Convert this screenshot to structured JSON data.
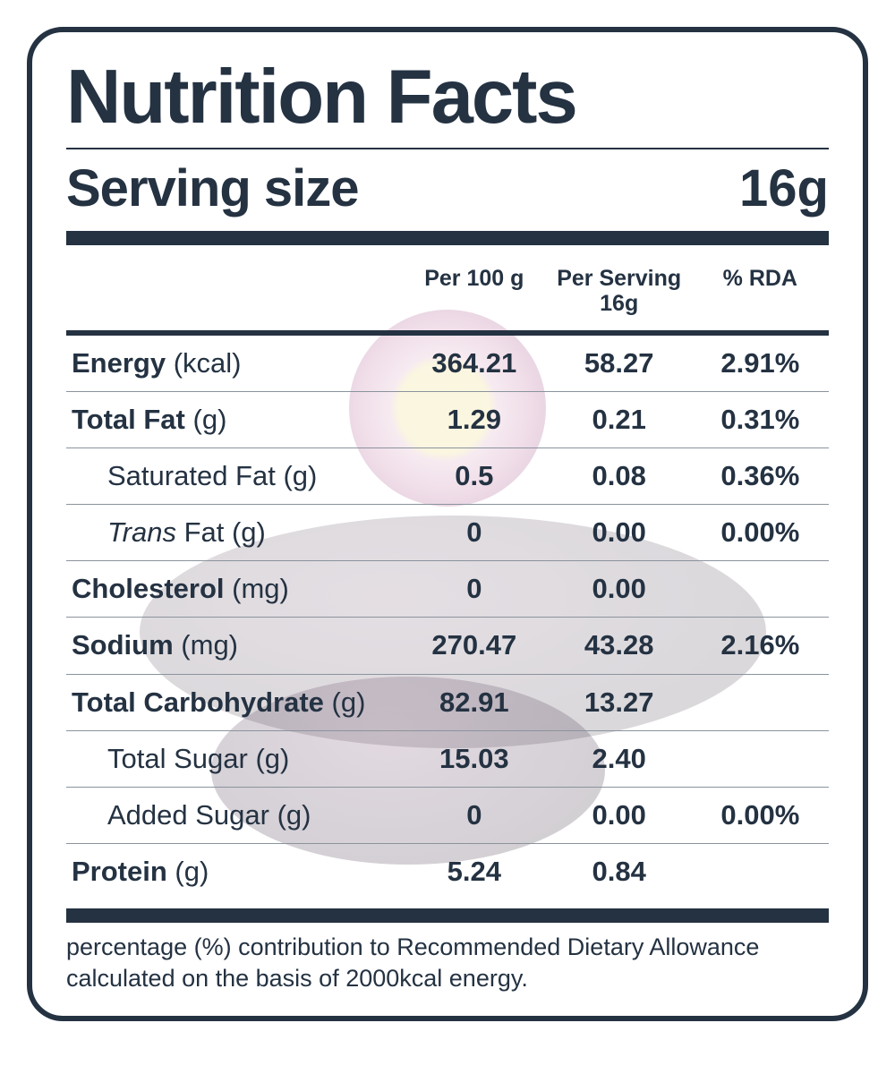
{
  "colors": {
    "ink": "#243242",
    "background": "#ffffff",
    "row_border": "#8a939d"
  },
  "typography": {
    "title_fontsize": 85,
    "serving_fontsize": 58,
    "header_fontsize": 25,
    "cell_fontsize": 31,
    "footnote_fontsize": 27,
    "title_weight": 900,
    "bold_weight": 800
  },
  "layout": {
    "panel_border_width": 6,
    "panel_border_radius": 40,
    "thick_bar_height": 16,
    "col_widths_pct": [
      44,
      19,
      19,
      18
    ]
  },
  "title": "Nutrition Facts",
  "serving": {
    "label": "Serving size",
    "value": "16g"
  },
  "headers": {
    "c0": "",
    "c1": "Per 100 g",
    "c2": "Per Serving 16g",
    "c3": "% RDA"
  },
  "rows": [
    {
      "name_bold": "Energy",
      "unit": "(kcal)",
      "indent": false,
      "italic": false,
      "v1": "364.21",
      "v2": "58.27",
      "v3": "2.91%"
    },
    {
      "name_bold": "Total Fat",
      "unit": "(g)",
      "indent": false,
      "italic": false,
      "v1": "1.29",
      "v2": "0.21",
      "v3": "0.31%"
    },
    {
      "name_plain": "Saturated Fat",
      "unit": "(g)",
      "indent": true,
      "italic": false,
      "v1": "0.5",
      "v2": "0.08",
      "v3": "0.36%"
    },
    {
      "name_italic": "Trans",
      "name_plain_after": " Fat",
      "unit": "(g)",
      "indent": true,
      "italic": true,
      "v1": "0",
      "v2": "0.00",
      "v3": "0.00%"
    },
    {
      "name_bold": "Cholesterol",
      "unit": "(mg)",
      "indent": false,
      "italic": false,
      "v1": "0",
      "v2": "0.00",
      "v3": ""
    },
    {
      "name_bold": "Sodium",
      "unit": "(mg)",
      "indent": false,
      "italic": false,
      "v1": "270.47",
      "v2": "43.28",
      "v3": "2.16%"
    },
    {
      "name_bold": "Total Carbohydrate",
      "unit": "(g)",
      "indent": false,
      "italic": false,
      "v1": "82.91",
      "v2": "13.27",
      "v3": ""
    },
    {
      "name_plain": "Total Sugar",
      "unit": "(g)",
      "indent": true,
      "italic": false,
      "v1": "15.03",
      "v2": "2.40",
      "v3": ""
    },
    {
      "name_plain": "Added Sugar",
      "unit": "(g)",
      "indent": true,
      "italic": false,
      "v1": "0",
      "v2": "0.00",
      "v3": "0.00%"
    },
    {
      "name_bold": "Protein",
      "unit": "(g)",
      "indent": false,
      "italic": false,
      "v1": "5.24",
      "v2": "0.84",
      "v3": ""
    }
  ],
  "footnote": "percentage (%) contribution to Recommended Dietary Allowance calculated on the basis of 2000kcal energy."
}
